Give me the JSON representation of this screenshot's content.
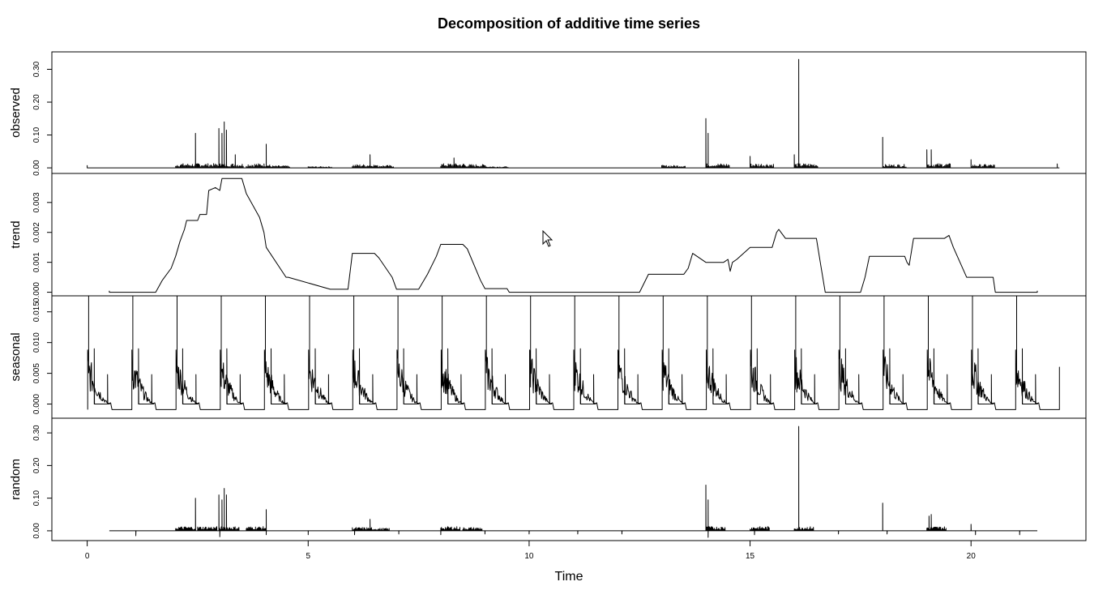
{
  "chart_data": {
    "type": "line",
    "title": "Decomposition of additive time series",
    "xlabel": "Time",
    "xlim": [
      -0.8,
      22.6
    ],
    "x_ticks": [
      0,
      5,
      10,
      15,
      20
    ],
    "x_tick_labels": [
      "0",
      "5",
      "10",
      "15",
      "20"
    ],
    "grid": false,
    "panels": [
      {
        "name": "observed",
        "ylabel": "observed",
        "ylim": [
          -0.017,
          0.353
        ],
        "y_ticks": [
          0.0,
          0.1,
          0.2,
          0.3
        ],
        "y_tick_labels": [
          "0.00",
          "0.10",
          "0.20",
          "0.30"
        ],
        "baseline": 0,
        "segments": [
          [
            0,
            0.0
          ],
          [
            0.02,
            0.0
          ],
          [
            2.0,
            0.01
          ],
          [
            2.5,
            0.01
          ],
          [
            3.0,
            0.01
          ],
          [
            3.6,
            0.01
          ],
          [
            4.05,
            0.005
          ],
          [
            5.0,
            0.003
          ],
          [
            6.0,
            0.008
          ],
          [
            6.4,
            0.006
          ],
          [
            8.0,
            0.01
          ],
          [
            8.5,
            0.008
          ],
          [
            9.0,
            0.003
          ],
          [
            13.0,
            0.006
          ],
          [
            14.0,
            0.01
          ],
          [
            15.0,
            0.01
          ],
          [
            16.0,
            0.01
          ],
          [
            18.0,
            0.008
          ],
          [
            19.0,
            0.01
          ],
          [
            20.0,
            0.008
          ]
        ],
        "segment_width": 0.55,
        "spikes": [
          [
            2.45,
            0.105
          ],
          [
            2.98,
            0.12
          ],
          [
            3.05,
            0.105
          ],
          [
            3.1,
            0.14
          ],
          [
            3.15,
            0.115
          ],
          [
            3.35,
            0.04
          ],
          [
            4.05,
            0.072
          ],
          [
            6.4,
            0.04
          ],
          [
            8.3,
            0.03
          ],
          [
            14.0,
            0.15
          ],
          [
            14.05,
            0.105
          ],
          [
            15.0,
            0.035
          ],
          [
            16.0,
            0.04
          ],
          [
            16.1,
            0.33
          ],
          [
            18.0,
            0.093
          ],
          [
            19.0,
            0.055
          ],
          [
            19.1,
            0.055
          ],
          [
            20.0,
            0.025
          ],
          [
            21.95,
            0.012
          ]
        ]
      },
      {
        "name": "trend",
        "ylabel": "trend",
        "ylim": [
          -0.00012,
          0.00397
        ],
        "y_ticks": [
          0.0,
          0.001,
          0.002,
          0.003
        ],
        "y_tick_labels": [
          "0.000",
          "0.001",
          "0.002",
          "0.003"
        ],
        "x": [
          0.5,
          0.5,
          1.55,
          1.7,
          1.9,
          2.0,
          2.1,
          2.2,
          2.25,
          2.5,
          2.55,
          2.7,
          2.75,
          2.9,
          3.0,
          3.05,
          3.5,
          3.6,
          3.9,
          4.0,
          4.05,
          4.5,
          4.55,
          5.5,
          5.7,
          5.9,
          6.0,
          6.5,
          6.6,
          6.9,
          7.0,
          7.5,
          7.7,
          7.9,
          8.0,
          8.5,
          8.6,
          8.9,
          9.0,
          9.5,
          9.55,
          12.5,
          12.6,
          12.7,
          13.5,
          13.6,
          13.7,
          14.0,
          14.4,
          14.5,
          14.55,
          14.6,
          14.7,
          14.85,
          15.0,
          15.5,
          15.6,
          15.65,
          15.7,
          15.8,
          16.0,
          16.5,
          16.6,
          16.7,
          17.5,
          17.6,
          17.7,
          17.9,
          18.0,
          18.5,
          18.55,
          18.6,
          18.7,
          19.0,
          19.4,
          19.5,
          19.6,
          19.9,
          20.5,
          20.55,
          21.5,
          21.5
        ],
        "y": [
          5e-05,
          0.0,
          0.0,
          0.0004,
          0.0008,
          0.0012,
          0.0017,
          0.0021,
          0.0024,
          0.0024,
          0.0026,
          0.0026,
          0.0034,
          0.0035,
          0.0034,
          0.0038,
          0.0038,
          0.0033,
          0.0025,
          0.002,
          0.0015,
          0.0005,
          0.0005,
          0.0001,
          0.0001,
          0.0001,
          0.0013,
          0.0013,
          0.00115,
          0.0005,
          0.0001,
          0.0001,
          0.0006,
          0.0012,
          0.0016,
          0.0016,
          0.00145,
          0.0004,
          0.00012,
          0.00012,
          0.0,
          0.0,
          0.0003,
          0.0006,
          0.0006,
          0.0008,
          0.0013,
          0.001,
          0.001,
          0.0011,
          0.0007,
          0.001,
          0.0011,
          0.0013,
          0.0015,
          0.0015,
          0.002,
          0.0021,
          0.002,
          0.0018,
          0.0018,
          0.0018,
          0.0009,
          0.0,
          0.0,
          0.0005,
          0.0012,
          0.0012,
          0.0012,
          0.0012,
          0.001,
          0.0009,
          0.0018,
          0.0018,
          0.0018,
          0.0019,
          0.0015,
          0.0005,
          0.0005,
          0.0,
          0.0,
          5e-05
        ]
      },
      {
        "name": "seasonal",
        "ylabel": "seasonal",
        "ylim": [
          -0.0023,
          0.0176
        ],
        "y_ticks": [
          0.0,
          0.005,
          0.01,
          0.015
        ],
        "y_tick_labels": [
          "0.000",
          "0.005",
          "0.010",
          "0.015"
        ],
        "period": 1,
        "start": 0,
        "end": 22,
        "pattern": {
          "min": -0.0009,
          "peak": 0.0176,
          "first_high": 0.0088,
          "decay_end": 0.0,
          "sub_spikes": [
            [
              0.15,
              0.009
            ],
            [
              0.45,
              0.0048
            ]
          ]
        }
      },
      {
        "name": "random",
        "ylabel": "random",
        "ylim": [
          -0.03,
          0.345
        ],
        "y_ticks": [
          0.0,
          0.1,
          0.2,
          0.3
        ],
        "y_tick_labels": [
          "0.00",
          "0.10",
          "0.20",
          "0.30"
        ],
        "baseline": 0,
        "range": [
          0.5,
          21.5
        ],
        "segments": [
          [
            2.0,
            0.01
          ],
          [
            2.5,
            0.01
          ],
          [
            3.0,
            0.01
          ],
          [
            3.6,
            0.01
          ],
          [
            6.0,
            0.008
          ],
          [
            6.4,
            0.006
          ],
          [
            8.0,
            0.01
          ],
          [
            8.5,
            0.008
          ],
          [
            14.0,
            0.01
          ],
          [
            15.0,
            0.01
          ],
          [
            16.0,
            0.01
          ],
          [
            19.0,
            0.01
          ]
        ],
        "segment_width": 0.45,
        "spikes": [
          [
            2.45,
            0.1
          ],
          [
            2.98,
            0.11
          ],
          [
            3.05,
            0.095
          ],
          [
            3.1,
            0.13
          ],
          [
            3.15,
            0.11
          ],
          [
            4.05,
            0.065
          ],
          [
            6.4,
            0.035
          ],
          [
            14.0,
            0.14
          ],
          [
            14.05,
            0.095
          ],
          [
            16.1,
            0.32
          ],
          [
            18.0,
            0.085
          ],
          [
            19.05,
            0.045
          ],
          [
            19.1,
            0.05
          ],
          [
            20.0,
            0.02
          ]
        ],
        "dips": [
          [
            1.1,
            -0.015
          ],
          [
            3.0,
            -0.018
          ],
          [
            4.05,
            -0.012
          ],
          [
            5.0,
            -0.012
          ],
          [
            6.05,
            -0.012
          ],
          [
            7.05,
            -0.01
          ],
          [
            8.0,
            -0.012
          ],
          [
            9.0,
            -0.01
          ],
          [
            10.0,
            -0.01
          ],
          [
            11.1,
            -0.01
          ],
          [
            12.1,
            -0.01
          ],
          [
            14.05,
            -0.02
          ],
          [
            15.1,
            -0.012
          ],
          [
            17.0,
            -0.01
          ],
          [
            18.1,
            -0.01
          ],
          [
            20.1,
            -0.012
          ],
          [
            21.1,
            -0.012
          ]
        ]
      }
    ]
  }
}
